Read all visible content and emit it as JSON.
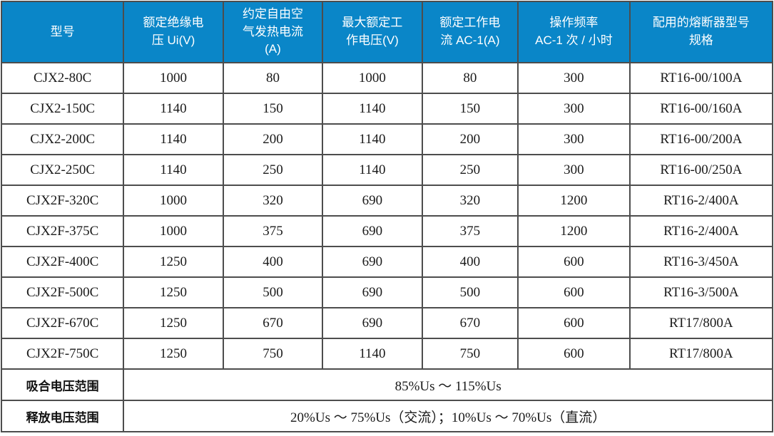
{
  "table": {
    "title": "contactor-specifications",
    "headers": [
      "型号",
      "额定绝缘电\n压 Ui(V)",
      "约定自由空\n气发热电流\n(A)",
      "最大额定工\n作电压(V)",
      "额定工作电\n流 AC-1(A)",
      "操作频率\nAC-1 次 / 小时",
      "配用的熔断器型号\n规格"
    ],
    "rows": [
      [
        "CJX2-80C",
        "1000",
        "80",
        "1000",
        "80",
        "300",
        "RT16-00/100A"
      ],
      [
        "CJX2-150C",
        "1140",
        "150",
        "1140",
        "150",
        "300",
        "RT16-00/160A"
      ],
      [
        "CJX2-200C",
        "1140",
        "200",
        "1140",
        "200",
        "300",
        "RT16-00/200A"
      ],
      [
        "CJX2-250C",
        "1140",
        "250",
        "1140",
        "250",
        "300",
        "RT16-00/250A"
      ],
      [
        "CJX2F-320C",
        "1000",
        "320",
        "690",
        "320",
        "1200",
        "RT16-2/400A"
      ],
      [
        "CJX2F-375C",
        "1000",
        "375",
        "690",
        "375",
        "1200",
        "RT16-2/400A"
      ],
      [
        "CJX2F-400C",
        "1250",
        "400",
        "690",
        "400",
        "600",
        "RT16-3/450A"
      ],
      [
        "CJX2F-500C",
        "1250",
        "500",
        "690",
        "500",
        "600",
        "RT16-3/500A"
      ],
      [
        "CJX2F-670C",
        "1250",
        "670",
        "690",
        "670",
        "600",
        "RT17/800A"
      ],
      [
        "CJX2F-750C",
        "1250",
        "750",
        "1140",
        "750",
        "600",
        "RT17/800A"
      ]
    ],
    "footer_rows": [
      {
        "label": "吸合电压范围",
        "value": "85%Us ～ 115%Us"
      },
      {
        "label": "释放电压范围",
        "value": "20%Us ～ 75%Us（交流）；10%Us ～ 70%Us（直流）"
      }
    ],
    "colors": {
      "header_bg": "#0A86C8",
      "header_text": "#FFFFFF",
      "border": "#4D4D4D",
      "body_text": "#1A1A1A"
    }
  }
}
